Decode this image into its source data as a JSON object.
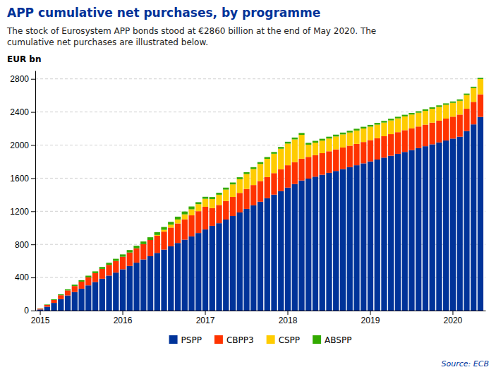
{
  "chart_data": {
    "type": "bar",
    "stacked": true,
    "title": "APP cumulative net purchases, by programme",
    "subtitle": "The stock of Eurosystem APP bonds stood at €2860 billion at the end of May 2020. The\ncumulative net purchases are illustrated below.",
    "ylabel": "EUR bn",
    "source": "Source: ECB",
    "categories": [
      "2015",
      null,
      null,
      null,
      null,
      null,
      null,
      null,
      null,
      null,
      null,
      null,
      "2016",
      null,
      null,
      null,
      null,
      null,
      null,
      null,
      null,
      null,
      null,
      null,
      "2017",
      null,
      null,
      null,
      null,
      null,
      null,
      null,
      null,
      null,
      null,
      null,
      "2018",
      null,
      null,
      null,
      null,
      null,
      null,
      null,
      null,
      null,
      null,
      null,
      "2019",
      null,
      null,
      null,
      null,
      null,
      null,
      null,
      null,
      null,
      null,
      null,
      "2020",
      null,
      null,
      null,
      null
    ],
    "series": [
      {
        "name": "PSPP",
        "color": "#003399",
        "values": [
          14,
          47,
          93,
          138,
          183,
          224,
          265,
          305,
          345,
          385,
          423,
          459,
          499,
          539,
          579,
          618,
          657,
          697,
          737,
          777,
          817,
          857,
          897,
          937,
          980,
          1024,
          1056,
          1100,
          1143,
          1186,
          1229,
          1272,
          1315,
          1358,
          1401,
          1443,
          1486,
          1529,
          1572,
          1595,
          1618,
          1641,
          1664,
          1687,
          1710,
          1733,
          1756,
          1779,
          1802,
          1825,
          1848,
          1871,
          1894,
          1917,
          1940,
          1963,
          1986,
          2009,
          2032,
          2055,
          2078,
          2101,
          2170,
          2250,
          2340
        ]
      },
      {
        "name": "CBPP3",
        "color": "#FF3300",
        "values": [
          10,
          22,
          35,
          48,
          61,
          73,
          85,
          97,
          108,
          119,
          130,
          141,
          152,
          163,
          174,
          185,
          196,
          207,
          217,
          226,
          236,
          245,
          254,
          264,
          274,
          214,
          220,
          224,
          230,
          236,
          241,
          245,
          250,
          255,
          260,
          265,
          270,
          265,
          263,
          262,
          261,
          261,
          261,
          261,
          261,
          259,
          258,
          258,
          258,
          258,
          259,
          261,
          262,
          263,
          262,
          261,
          261,
          262,
          263,
          265,
          265,
          267,
          269,
          272,
          273
        ]
      },
      {
        "name": "CSPP",
        "color": "#FFCC00",
        "values": [
          0,
          0,
          0,
          0,
          0,
          0,
          0,
          0,
          0,
          0,
          0,
          0,
          0,
          0,
          0,
          0,
          0,
          10,
          22,
          35,
          48,
          61,
          73,
          85,
          97,
          110,
          124,
          138,
          152,
          166,
          180,
          194,
          207,
          221,
          234,
          248,
          262,
          275,
          289,
          148,
          150,
          152,
          154,
          156,
          158,
          160,
          162,
          163,
          163,
          164,
          165,
          166,
          167,
          167,
          167,
          167,
          167,
          167,
          167,
          167,
          167,
          167,
          167,
          167,
          185
        ]
      },
      {
        "name": "ABSPP",
        "color": "#33AA00",
        "values": [
          2,
          5,
          8,
          11,
          13,
          16,
          18,
          20,
          21,
          23,
          25,
          26,
          28,
          30,
          31,
          32,
          33,
          34,
          34,
          34,
          34,
          34,
          34,
          24,
          24,
          24,
          24,
          24,
          23,
          23,
          22,
          22,
          22,
          21,
          21,
          21,
          22,
          22,
          22,
          22,
          22,
          22,
          22,
          22,
          22,
          21,
          21,
          21,
          21,
          21,
          20,
          20,
          19,
          19,
          19,
          18,
          18,
          18,
          18,
          17,
          17,
          17,
          16,
          16,
          15
        ]
      }
    ],
    "ylim": [
      0,
      2900
    ],
    "yticks": [
      0,
      400,
      800,
      1200,
      1600,
      2000,
      2400,
      2800
    ],
    "grid": true,
    "legend": "bottom"
  }
}
